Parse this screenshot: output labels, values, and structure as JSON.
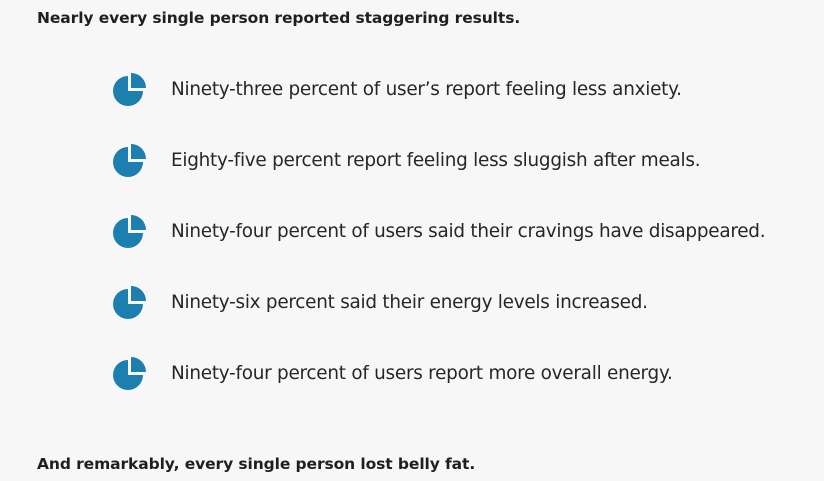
{
  "intro": "Nearly every single person reported staggering results.",
  "stats_icon": "pie-chart-icon",
  "accent_color": "#1d7fb0",
  "stats": [
    {
      "text": "Ninety-three percent of user’s report feeling less anxiety."
    },
    {
      "text": "Eighty-five percent report feeling less sluggish after meals."
    },
    {
      "text": "Ninety-four percent of users said their cravings have disappeared."
    },
    {
      "text": "Ninety-six percent said their energy levels increased."
    },
    {
      "text": "Ninety-four percent of users report more overall energy."
    }
  ],
  "closing": "And remarkably, every single person lost belly fat."
}
